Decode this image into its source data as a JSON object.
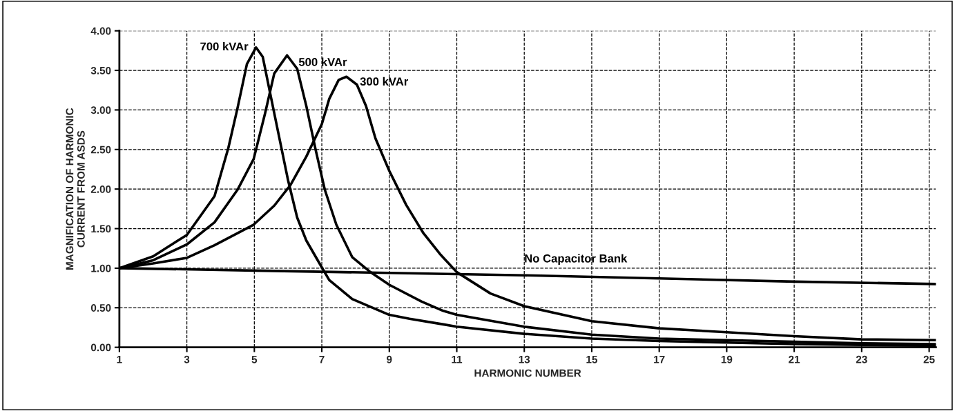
{
  "chart_data": {
    "type": "line",
    "xlabel": "HARMONIC NUMBER",
    "ylabel": "MAGNIFICATION OF HARMONIC\nCURRENT FROM ASDS",
    "xlim": [
      1,
      25.2
    ],
    "ylim": [
      0,
      4.0
    ],
    "xticks": [
      1,
      3,
      5,
      7,
      9,
      11,
      13,
      15,
      17,
      19,
      21,
      23,
      25
    ],
    "yticks": [
      {
        "value": 0,
        "label": "0.00"
      },
      {
        "value": 0.5,
        "label": "0.50"
      },
      {
        "value": 1.0,
        "label": "1.00"
      },
      {
        "value": 1.5,
        "label": "1.50"
      },
      {
        "value": 2.0,
        "label": "2.00"
      },
      {
        "value": 2.5,
        "label": "2.50"
      },
      {
        "value": 3.0,
        "label": "3.00"
      },
      {
        "value": 3.5,
        "label": "3.50"
      },
      {
        "value": 4.0,
        "label": "4.00"
      }
    ],
    "grid": true,
    "line_style": "solid",
    "marker": "none",
    "series": [
      {
        "name": "700 kVAr",
        "color": "#000000",
        "x": [
          1,
          2,
          3,
          3.82,
          4.23,
          4.5,
          4.78,
          5.05,
          5.25,
          5.46,
          5.73,
          6.0,
          6.27,
          6.54,
          7.0,
          7.22,
          7.9,
          9.0,
          9.6,
          10.6,
          11,
          13,
          15,
          17,
          19,
          21,
          23,
          25.2
        ],
        "values": [
          1.0,
          1.15,
          1.42,
          1.91,
          2.52,
          3.02,
          3.58,
          3.79,
          3.67,
          3.23,
          2.67,
          2.11,
          1.64,
          1.35,
          1.01,
          0.85,
          0.61,
          0.41,
          0.36,
          0.29,
          0.26,
          0.17,
          0.11,
          0.08,
          0.06,
          0.04,
          0.03,
          0.02
        ]
      },
      {
        "name": "500 kVAr",
        "color": "#000000",
        "x": [
          1,
          2,
          3,
          3.82,
          4.5,
          4.98,
          5.32,
          5.59,
          5.97,
          6.27,
          6.54,
          6.82,
          7.09,
          7.43,
          7.9,
          8.41,
          9.0,
          9.95,
          10.6,
          11,
          13,
          15,
          17,
          19,
          21,
          23,
          25.2
        ],
        "values": [
          1.0,
          1.1,
          1.3,
          1.58,
          1.99,
          2.38,
          2.96,
          3.46,
          3.69,
          3.52,
          3.05,
          2.49,
          1.99,
          1.55,
          1.14,
          0.96,
          0.79,
          0.58,
          0.46,
          0.41,
          0.26,
          0.16,
          0.11,
          0.09,
          0.07,
          0.05,
          0.04
        ]
      },
      {
        "name": "300 kVAr",
        "color": "#000000",
        "x": [
          1,
          2,
          3,
          3.82,
          4.98,
          5.59,
          6.07,
          6.54,
          7.0,
          7.22,
          7.5,
          7.73,
          8.04,
          8.31,
          8.59,
          9.0,
          9.5,
          10.0,
          10.5,
          11,
          12,
          13,
          15,
          17,
          19,
          21,
          23,
          25.2
        ],
        "values": [
          1.0,
          1.06,
          1.13,
          1.29,
          1.55,
          1.79,
          2.05,
          2.41,
          2.82,
          3.14,
          3.38,
          3.42,
          3.32,
          3.05,
          2.64,
          2.23,
          1.8,
          1.45,
          1.18,
          0.95,
          0.68,
          0.52,
          0.33,
          0.24,
          0.19,
          0.14,
          0.1,
          0.09
        ]
      },
      {
        "name": "No Capacitor Bank",
        "color": "#000000",
        "x": [
          1,
          5,
          9,
          13,
          17,
          21,
          25.2
        ],
        "values": [
          1.0,
          0.97,
          0.94,
          0.91,
          0.87,
          0.83,
          0.8
        ]
      }
    ]
  }
}
